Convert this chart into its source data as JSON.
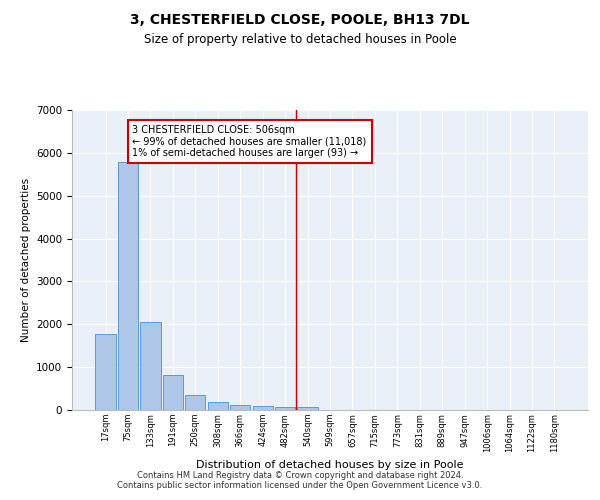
{
  "title": "3, CHESTERFIELD CLOSE, POOLE, BH13 7DL",
  "subtitle": "Size of property relative to detached houses in Poole",
  "xlabel": "Distribution of detached houses by size in Poole",
  "ylabel": "Number of detached properties",
  "bar_categories": [
    "17sqm",
    "75sqm",
    "133sqm",
    "191sqm",
    "250sqm",
    "308sqm",
    "366sqm",
    "424sqm",
    "482sqm",
    "540sqm",
    "599sqm",
    "657sqm",
    "715sqm",
    "773sqm",
    "831sqm",
    "889sqm",
    "947sqm",
    "1006sqm",
    "1064sqm",
    "1122sqm",
    "1180sqm"
  ],
  "bar_values": [
    1780,
    5780,
    2060,
    820,
    340,
    185,
    120,
    95,
    80,
    65,
    0,
    0,
    0,
    0,
    0,
    0,
    0,
    0,
    0,
    0,
    0
  ],
  "bar_color": "#aec6e8",
  "bar_edge_color": "#5b9bd5",
  "property_line_x": 8.5,
  "annotation_text": "3 CHESTERFIELD CLOSE: 506sqm\n← 99% of detached houses are smaller (11,018)\n1% of semi-detached houses are larger (93) →",
  "vline_color": "#cc0000",
  "annotation_box_edge_color": "#cc0000",
  "ylim": [
    0,
    7000
  ],
  "yticks": [
    0,
    1000,
    2000,
    3000,
    4000,
    5000,
    6000,
    7000
  ],
  "background_color": "#eaf0f8",
  "grid_color": "#ffffff",
  "title_fontsize": 10,
  "subtitle_fontsize": 8.5,
  "footer_line1": "Contains HM Land Registry data © Crown copyright and database right 2024.",
  "footer_line2": "Contains public sector information licensed under the Open Government Licence v3.0."
}
